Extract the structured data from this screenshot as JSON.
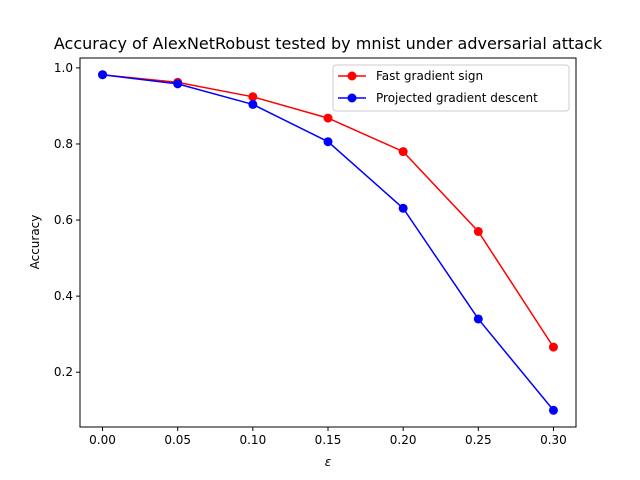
{
  "chart_data": {
    "type": "line",
    "title": "Accuracy of AlexNetRobust tested by mnist under adversarial attack",
    "xlabel": "ε",
    "ylabel": "Accuracy",
    "x": [
      0.0,
      0.05,
      0.1,
      0.15,
      0.2,
      0.25,
      0.3
    ],
    "x_ticks": [
      "0.00",
      "0.05",
      "0.10",
      "0.15",
      "0.20",
      "0.25",
      "0.30"
    ],
    "y_ticks": [
      "0.2",
      "0.4",
      "0.6",
      "0.8",
      "1.0"
    ],
    "y_tick_values": [
      0.2,
      0.4,
      0.6,
      0.8,
      1.0
    ],
    "xlim": [
      -0.015,
      0.315
    ],
    "ylim": [
      0.056,
      1.026
    ],
    "grid": false,
    "legend_position": "top-right",
    "series": [
      {
        "name": "Fast gradient sign",
        "color": "#ff0000",
        "marker": "circle",
        "values": [
          0.982,
          0.962,
          0.924,
          0.868,
          0.78,
          0.57,
          0.266
        ]
      },
      {
        "name": "Projected gradient descent",
        "color": "#0000ff",
        "marker": "circle",
        "values": [
          0.982,
          0.958,
          0.904,
          0.806,
          0.631,
          0.34,
          0.1
        ]
      }
    ]
  }
}
